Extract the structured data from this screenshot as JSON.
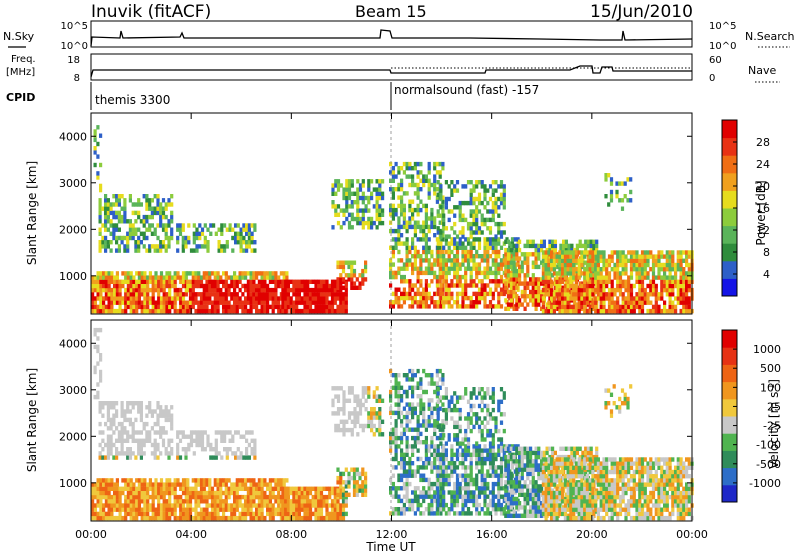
{
  "header": {
    "station": "Inuvik (fitACF)",
    "beam": "Beam 15",
    "date": "15/Jun/2010"
  },
  "top_panels": {
    "nsky_label": "N.Sky",
    "nsearch_label": "N.Search",
    "nsky_ticks": [
      "10^5",
      "10^0"
    ],
    "nsearch_ticks": [
      "10^5",
      "10^0"
    ],
    "freq_label_1": "Freq.",
    "freq_label_2": "[MHz]",
    "freq_ticks": [
      "18",
      "8"
    ],
    "nave_label": "Nave",
    "nave_ticks": [
      "60",
      "0"
    ],
    "cpid_label": "CPID",
    "cpid_modes": [
      "themis 3300",
      "normalsound (fast) -157"
    ],
    "cpid_switch_hour": 12.0
  },
  "chart_data": [
    {
      "type": "heatmap",
      "panel": "power",
      "ylabel": "Slant Range [km]",
      "ylim": [
        180,
        4500
      ],
      "yticks": [
        "1000",
        "2000",
        "3000",
        "4000"
      ],
      "yticks_values": [
        1000,
        2000,
        3000,
        4000
      ],
      "xlim": [
        0,
        24
      ],
      "xticks": [
        "00:00",
        "04:00",
        "08:00",
        "12:00",
        "16:00",
        "20:00",
        "00:00"
      ],
      "colorbar": {
        "label": "Power [dB]",
        "range": [
          0,
          30
        ],
        "ticks": [
          "4",
          "8",
          "12",
          "16",
          "20",
          "24",
          "28"
        ],
        "colors": [
          "#1414e6",
          "#2d5fc8",
          "#2f8c3c",
          "#5ab45a",
          "#8ccc3c",
          "#e6dc1e",
          "#f0a01e",
          "#f06e14",
          "#e83214",
          "#e00000"
        ]
      }
    },
    {
      "type": "heatmap",
      "panel": "velocity",
      "ylabel": "Slant Range [km]",
      "ylim": [
        180,
        4500
      ],
      "yticks": [
        "1000",
        "2000",
        "3000",
        "4000"
      ],
      "yticks_values": [
        1000,
        2000,
        3000,
        4000
      ],
      "xlim": [
        0,
        24
      ],
      "xticks": [
        "00:00",
        "04:00",
        "08:00",
        "12:00",
        "16:00",
        "20:00",
        "00:00"
      ],
      "xlabel": "Time UT",
      "colorbar": {
        "label": "Velocity [m s^-1]",
        "ticks": [
          "1000",
          "500",
          "100",
          "25",
          "-25",
          "-100",
          "-500",
          "-1000"
        ],
        "colors": [
          "#1e28c8",
          "#2d6ec8",
          "#2f8c5a",
          "#50b450",
          "#c8c8c8",
          "#f0c83c",
          "#f0961e",
          "#ee6414",
          "#e63214",
          "#e00000"
        ]
      }
    }
  ]
}
